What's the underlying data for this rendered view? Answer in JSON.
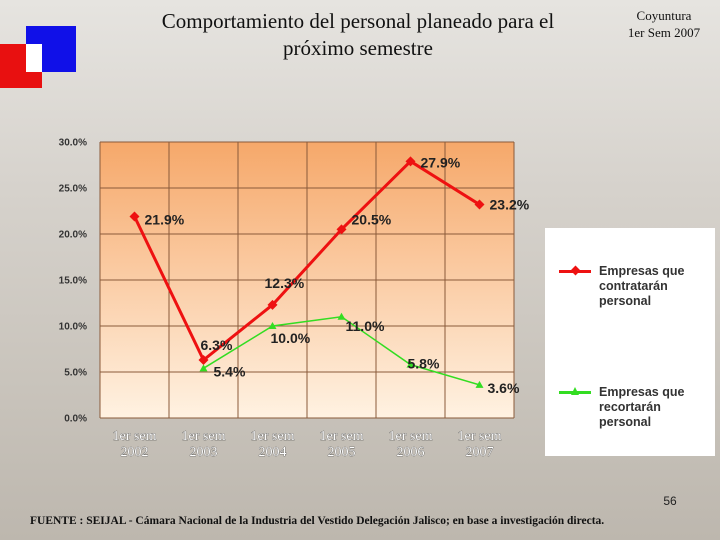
{
  "title": "Comportamiento del personal planeado para el próximo semestre",
  "title_lines": [
    "Comportamiento del personal planeado para el",
    "próximo semestre"
  ],
  "corner": {
    "line1": "Coyuntura",
    "line2": "1er Sem 2007"
  },
  "page_number": "56",
  "footer": "FUENTE : SEIJAL - Cámara Nacional de la Industria del Vestido Delegación Jalisco; en base a investigación directa.",
  "colors": {
    "hire": "#ee1111",
    "cut": "#33dd22",
    "grid": "#8a5a3a",
    "plot_top": "#f6a86a",
    "plot_bottom": "#fff2e2"
  },
  "chart_data": {
    "type": "line",
    "title": "Comportamiento del personal planeado para el próximo semestre",
    "categories": [
      "1er sem\n2002",
      "1er sem\n2003",
      "1er sem\n2004",
      "1er sem\n2005",
      "1er sem\n2006",
      "1er sem\n2007"
    ],
    "category_lines": [
      [
        "1er sem",
        "2002"
      ],
      [
        "1er sem",
        "2003"
      ],
      [
        "1er sem",
        "2004"
      ],
      [
        "1er sem",
        "2005"
      ],
      [
        "1er sem",
        "2006"
      ],
      [
        "1er sem",
        "2007"
      ]
    ],
    "ylim": [
      0,
      30
    ],
    "yticks": [
      0,
      5,
      10,
      15,
      20,
      25,
      30
    ],
    "ytick_labels": [
      "0.0%",
      "5.0%",
      "10.0%",
      "15.0%",
      "20.0%",
      "25.0%",
      "30.0%"
    ],
    "grid": true,
    "legend_position": "right",
    "series": [
      {
        "name": "Empresas que contratarán personal",
        "legend_lines": [
          "Empresas que",
          "contratarán",
          "personal"
        ],
        "color": "#ee1111",
        "marker": "diamond",
        "values": [
          21.9,
          6.3,
          12.3,
          20.5,
          27.9,
          23.2
        ],
        "labels": [
          "21.9%",
          "6.3%",
          "12.3%",
          "20.5%",
          "27.9%",
          "23.2%"
        ]
      },
      {
        "name": "Empresas que recortarán personal",
        "legend_lines": [
          "Empresas que",
          "recortarán",
          "personal"
        ],
        "color": "#33dd22",
        "marker": "triangle",
        "values": [
          null,
          5.4,
          10.0,
          11.0,
          5.8,
          3.6
        ],
        "labels": [
          "",
          "5.4%",
          "10.0%",
          "11.0%",
          "5.8%",
          "3.6%"
        ]
      }
    ]
  }
}
